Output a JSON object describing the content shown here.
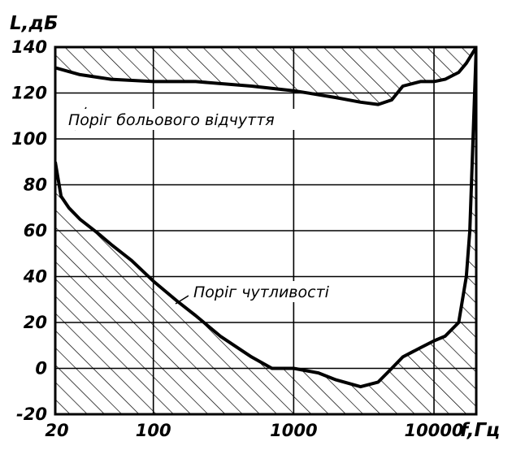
{
  "chart_data": {
    "type": "line",
    "xlabel": "f,Гц",
    "ylabel": "L,дБ",
    "x_scale": "log",
    "xlim": [
      20,
      20000
    ],
    "ylim": [
      -20,
      140
    ],
    "grid": true,
    "x_ticks": [
      {
        "value": 20,
        "label": "20"
      },
      {
        "value": 100,
        "label": "100"
      },
      {
        "value": 1000,
        "label": "1000"
      },
      {
        "value": 10000,
        "label": "10000"
      }
    ],
    "y_ticks": [
      {
        "value": 140,
        "label": "140"
      },
      {
        "value": 120,
        "label": "120"
      },
      {
        "value": 100,
        "label": "100"
      },
      {
        "value": 80,
        "label": "80"
      },
      {
        "value": 60,
        "label": "60"
      },
      {
        "value": 40,
        "label": "40"
      },
      {
        "value": 20,
        "label": "20"
      },
      {
        "value": 0,
        "label": "0"
      },
      {
        "value": -20,
        "label": "-20"
      }
    ],
    "series": [
      {
        "name": "Поріг больового відчуття",
        "x": [
          20,
          30,
          50,
          100,
          200,
          500,
          1000,
          2000,
          3000,
          4000,
          5000,
          6000,
          8000,
          10000,
          12000,
          15000,
          17000,
          20000
        ],
        "y": [
          131,
          128,
          126,
          125,
          125,
          123,
          121,
          118,
          116,
          115,
          117,
          123,
          125,
          125,
          126,
          129,
          133,
          140
        ]
      },
      {
        "name": "Поріг чутливості",
        "x": [
          20,
          22,
          25,
          30,
          40,
          50,
          70,
          100,
          150,
          200,
          300,
          500,
          700,
          1000,
          1500,
          2000,
          3000,
          4000,
          5000,
          6000,
          8000,
          10000,
          12000,
          15000,
          17000,
          18000,
          20000
        ],
        "y": [
          90,
          75,
          70,
          65,
          59,
          54,
          47,
          38,
          29,
          23,
          14,
          5,
          0,
          0,
          -2,
          -5,
          -8,
          -6,
          0,
          5,
          9,
          12,
          14,
          20,
          40,
          60,
          140
        ]
      }
    ],
    "annotations": {
      "pain": "Поріг больового відчуття",
      "hearing": "Поріг чутливості"
    }
  }
}
